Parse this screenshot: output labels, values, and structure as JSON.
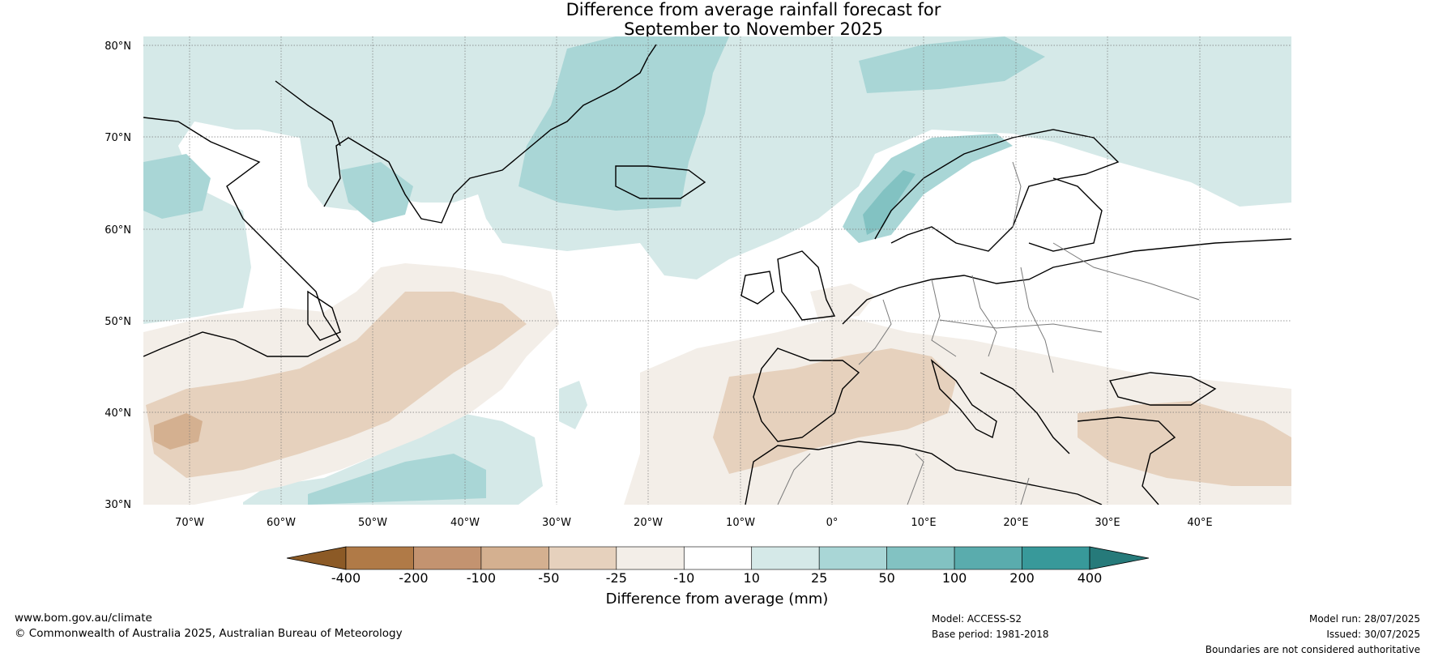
{
  "title": {
    "line1": "Difference from average rainfall forecast for",
    "line2": "September to November 2025"
  },
  "axes": {
    "lat_labels": [
      "80°N",
      "70°N",
      "60°N",
      "50°N",
      "40°N",
      "30°N"
    ],
    "lon_labels": [
      "70°W",
      "60°W",
      "50°W",
      "40°W",
      "30°W",
      "20°W",
      "10°W",
      "0°",
      "10°E",
      "20°E",
      "30°E",
      "40°E"
    ]
  },
  "colorbar": {
    "label": "Difference from average (mm)",
    "ticks": [
      "-400",
      "-200",
      "-100",
      "-50",
      "-25",
      "-10",
      "10",
      "25",
      "50",
      "100",
      "200",
      "400"
    ],
    "colors": [
      "#8c5a26",
      "#b07a47",
      "#c39370",
      "#d4b090",
      "#e6d1bd",
      "#f3eee8",
      "#ffffff",
      "#d5e9e8",
      "#a9d6d6",
      "#82c2c2",
      "#5aacad",
      "#38999a",
      "#267a7a"
    ]
  },
  "footer": {
    "website": "www.bom.gov.au/climate",
    "copyright": "© Commonwealth of Australia 2025, Australian Bureau of Meteorology",
    "model": "Model: ACCESS-S2",
    "base_period": "Base period: 1981-2018",
    "model_run": "Model run: 28/07/2025",
    "issued": "Issued: 30/07/2025",
    "disclaimer": "Boundaries are not considered authoritative"
  }
}
